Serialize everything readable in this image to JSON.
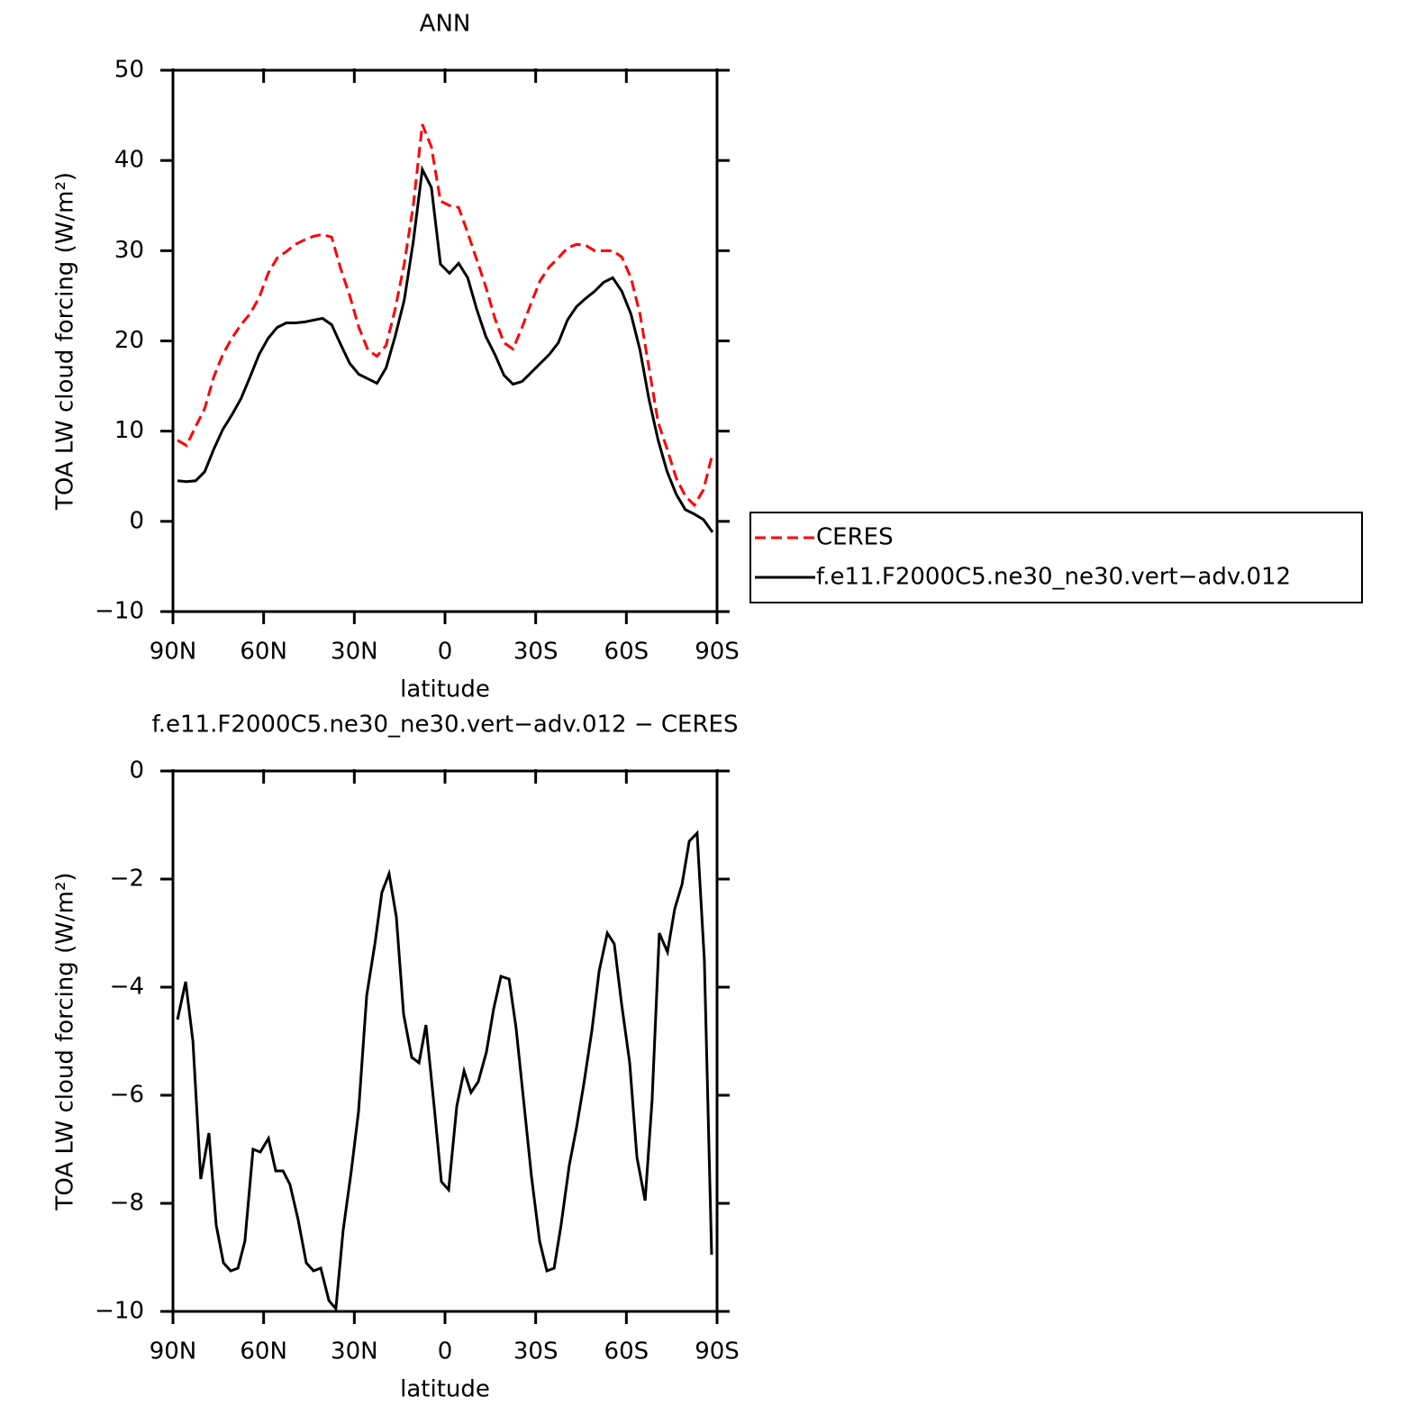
{
  "chart_data": [
    {
      "type": "line",
      "title": "ANN",
      "xlabel": "latitude",
      "ylabel": "TOA LW cloud forcing (W/m²)",
      "x": [
        88.5,
        85.5,
        82.5,
        79.5,
        76.5,
        73.5,
        70.5,
        67.5,
        64.5,
        61.5,
        58.5,
        55.5,
        52.5,
        49.5,
        46.5,
        43.5,
        40.5,
        37.5,
        34.5,
        31.5,
        28.5,
        25.5,
        22.5,
        19.5,
        16.5,
        13.5,
        10.5,
        7.5,
        4.5,
        1.5,
        -1.5,
        -4.5,
        -7.5,
        -10.5,
        -13.5,
        -16.5,
        -19.5,
        -22.5,
        -25.5,
        -28.5,
        -31.5,
        -34.5,
        -37.5,
        -40.5,
        -43.5,
        -46.5,
        -49.5,
        -52.5,
        -55.5,
        -58.5,
        -61.5,
        -64.5,
        -67.5,
        -70.5,
        -73.5,
        -76.5,
        -79.5,
        -82.5,
        -85.5,
        -88.5
      ],
      "xlim": [
        90,
        -90
      ],
      "xticks": [
        {
          "value": 90,
          "label": "90N"
        },
        {
          "value": 60,
          "label": "60N"
        },
        {
          "value": 30,
          "label": "30N"
        },
        0,
        {
          "value": -30,
          "label": "30S"
        },
        {
          "value": -60,
          "label": "60S"
        },
        {
          "value": -90,
          "label": "90S"
        }
      ],
      "ylim": [
        -10,
        50
      ],
      "yticks": [
        {
          "value": -10,
          "label": "−10"
        },
        0,
        10,
        20,
        30,
        40,
        50
      ],
      "legend": "right",
      "series": [
        {
          "name": "CERES",
          "color": "#ff0000",
          "dashed": true,
          "values": [
            9,
            8.4,
            10.5,
            12.5,
            16,
            18.5,
            20.3,
            21.8,
            23,
            24.8,
            27.5,
            29.2,
            29.9,
            30.7,
            31.2,
            31.6,
            31.8,
            31.5,
            28,
            25,
            21.5,
            19,
            18.3,
            19.5,
            23.5,
            28.5,
            35,
            44,
            41.5,
            35.5,
            35,
            34.8,
            32,
            29,
            26,
            22.5,
            19.8,
            19.1,
            21.5,
            24.2,
            26.7,
            28.2,
            29.2,
            30.3,
            30.7,
            30.6,
            30,
            30,
            30,
            29.3,
            27,
            23,
            17,
            11,
            8,
            4.8,
            2.8,
            1.8,
            3.5,
            7.5
          ]
        },
        {
          "name": "f.e11.F2000C5.ne30_ne30.vert−adv.012",
          "color": "#000000",
          "dashed": false,
          "values": [
            4.5,
            4.4,
            4.5,
            5.5,
            8,
            10.2,
            11.8,
            13.6,
            16,
            18.5,
            20.3,
            21.5,
            22,
            22,
            22.1,
            22.3,
            22.5,
            21.8,
            19.6,
            17.5,
            16.3,
            15.8,
            15.3,
            17,
            20.5,
            24.5,
            31,
            39,
            37,
            28.5,
            27.5,
            28.6,
            27,
            23.5,
            20.5,
            18.5,
            16.2,
            15.2,
            15.5,
            16.5,
            17.5,
            18.5,
            19.8,
            22.3,
            23.8,
            24.7,
            25.5,
            26.5,
            27,
            25.5,
            23,
            19,
            13.5,
            9,
            5.5,
            3,
            1.3,
            0.8,
            0.2,
            -1.2
          ]
        }
      ]
    },
    {
      "type": "line",
      "title": "f.e11.F2000C5.ne30_ne30.vert−adv.012 − CERES",
      "xlabel": "latitude",
      "ylabel": "TOA LW cloud forcing (W/m²)",
      "x": [
        88.5,
        85.8,
        83.4,
        80.8,
        78.1,
        75.7,
        73.3,
        70.9,
        68.5,
        66.2,
        63.5,
        61.1,
        58.4,
        56.0,
        53.6,
        51.3,
        48.6,
        45.9,
        43.5,
        41.1,
        38.4,
        36.1,
        33.7,
        31.0,
        28.6,
        25.9,
        23.2,
        20.9,
        18.5,
        16.1,
        13.7,
        11.0,
        8.6,
        6.3,
        3.6,
        1.2,
        -1.2,
        -3.9,
        -6.3,
        -8.6,
        -11.0,
        -13.7,
        -16.1,
        -18.5,
        -21.2,
        -23.5,
        -26.2,
        -28.6,
        -31.3,
        -33.7,
        -36.1,
        -38.4,
        -41.1,
        -43.5,
        -45.9,
        -48.6,
        -51.0,
        -53.7,
        -56.0,
        -58.4,
        -61.1,
        -63.5,
        -66.2,
        -68.5,
        -70.9,
        -73.6,
        -76.0,
        -78.4,
        -80.8,
        -83.4,
        -85.8,
        -88.2
      ],
      "xlim": [
        90,
        -90
      ],
      "xticks": [
        {
          "value": 90,
          "label": "90N"
        },
        {
          "value": 60,
          "label": "60N"
        },
        {
          "value": 30,
          "label": "30N"
        },
        0,
        {
          "value": -30,
          "label": "30S"
        },
        {
          "value": -60,
          "label": "60S"
        },
        {
          "value": -90,
          "label": "90S"
        }
      ],
      "ylim": [
        -10,
        0
      ],
      "yticks": [
        {
          "value": -10,
          "label": "−10"
        },
        {
          "value": -8,
          "label": "−8"
        },
        {
          "value": -6,
          "label": "−6"
        },
        {
          "value": -4,
          "label": "−4"
        },
        {
          "value": -2,
          "label": "−2"
        },
        0
      ],
      "series": [
        {
          "color": "#000000",
          "dashed": false,
          "values": [
            -4.6,
            -3.9,
            -5,
            -7.55,
            -6.7,
            -8.4,
            -9.1,
            -9.25,
            -9.2,
            -8.7,
            -7,
            -7.05,
            -6.8,
            -7.4,
            -7.4,
            -7.65,
            -8.3,
            -9.1,
            -9.25,
            -9.2,
            -9.8,
            -9.95,
            -8.5,
            -7.4,
            -6.3,
            -4.15,
            -3.2,
            -2.25,
            -1.9,
            -2.7,
            -4.5,
            -5.3,
            -5.4,
            -4.7,
            -6.2,
            -7.6,
            -7.75,
            -6.2,
            -5.55,
            -5.95,
            -5.75,
            -5.2,
            -4.4,
            -3.8,
            -3.85,
            -4.75,
            -6.2,
            -7.5,
            -8.7,
            -9.25,
            -9.2,
            -8.4,
            -7.3,
            -6.6,
            -5.8,
            -4.8,
            -3.7,
            -3,
            -3.2,
            -4.3,
            -5.4,
            -7.15,
            -7.95,
            -6.1,
            -3,
            -3.35,
            -2.55,
            -2.1,
            -1.3,
            -1.15,
            -3.5,
            -8.95
          ]
        }
      ]
    }
  ]
}
